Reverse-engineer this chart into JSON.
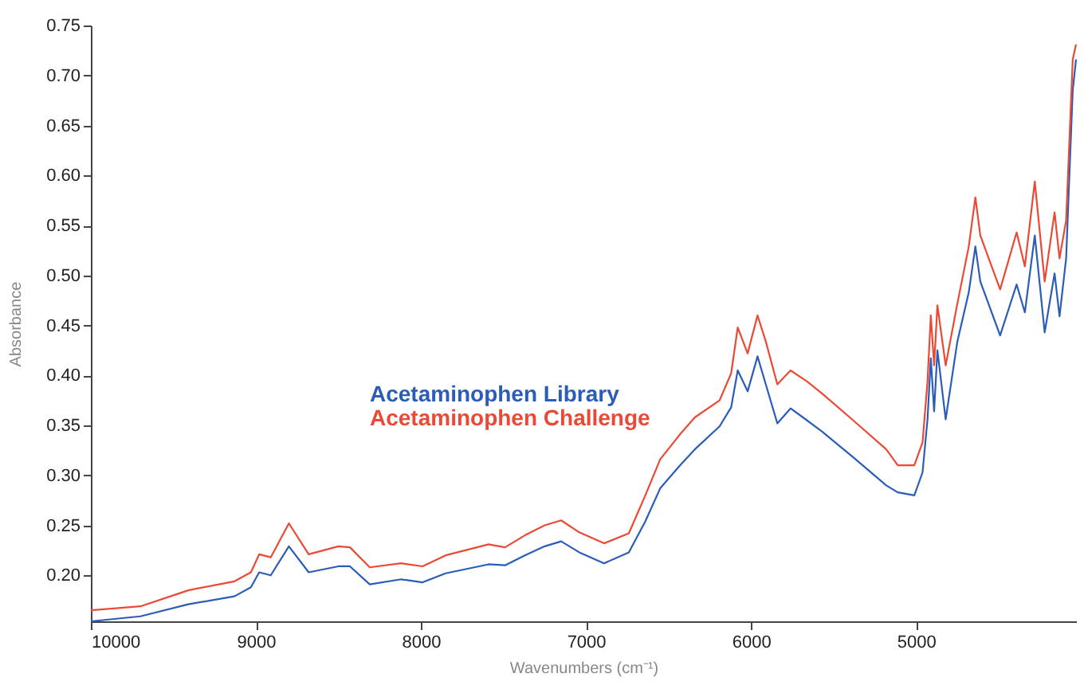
{
  "chart_data": {
    "type": "line",
    "xlabel": "Wavenumbers (cm⁻¹)",
    "ylabel": "Absorbance",
    "x": [
      10000,
      9700,
      9410,
      9130,
      9030,
      8980,
      8910,
      8800,
      8680,
      8500,
      8430,
      8310,
      8120,
      7990,
      7850,
      7590,
      7490,
      7370,
      7250,
      7150,
      7040,
      6890,
      6740,
      6640,
      6550,
      6430,
      6340,
      6190,
      6120,
      6080,
      6020,
      5960,
      5910,
      5840,
      5760,
      5660,
      5570,
      5380,
      5180,
      5110,
      5010,
      4960,
      4930,
      4910,
      4890,
      4870,
      4820,
      4750,
      4680,
      4640,
      4610,
      4490,
      4390,
      4340,
      4280,
      4220,
      4160,
      4130,
      4090,
      4050,
      4030
    ],
    "series": [
      {
        "name": "Acetaminophen Library",
        "color": "#2a5cb8",
        "values": [
          0.154,
          0.159,
          0.171,
          0.179,
          0.188,
          0.203,
          0.2,
          0.229,
          0.203,
          0.209,
          0.209,
          0.191,
          0.196,
          0.193,
          0.202,
          0.211,
          0.21,
          0.22,
          0.229,
          0.234,
          0.223,
          0.212,
          0.223,
          0.254,
          0.287,
          0.31,
          0.326,
          0.349,
          0.368,
          0.405,
          0.384,
          0.419,
          0.391,
          0.352,
          0.367,
          0.355,
          0.344,
          0.318,
          0.29,
          0.283,
          0.28,
          0.303,
          0.356,
          0.417,
          0.364,
          0.425,
          0.356,
          0.433,
          0.483,
          0.529,
          0.494,
          0.44,
          0.491,
          0.463,
          0.54,
          0.443,
          0.502,
          0.459,
          0.517,
          0.685,
          0.716
        ]
      },
      {
        "name": "Acetaminophen Challenge",
        "color": "#ea4a35",
        "values": [
          0.165,
          0.169,
          0.185,
          0.194,
          0.203,
          0.221,
          0.218,
          0.252,
          0.221,
          0.229,
          0.228,
          0.208,
          0.212,
          0.209,
          0.22,
          0.231,
          0.228,
          0.24,
          0.25,
          0.255,
          0.243,
          0.232,
          0.242,
          0.28,
          0.316,
          0.341,
          0.358,
          0.375,
          0.402,
          0.448,
          0.422,
          0.46,
          0.434,
          0.391,
          0.405,
          0.394,
          0.382,
          0.355,
          0.326,
          0.31,
          0.31,
          0.333,
          0.394,
          0.46,
          0.41,
          0.47,
          0.41,
          0.471,
          0.529,
          0.578,
          0.54,
          0.486,
          0.543,
          0.509,
          0.594,
          0.494,
          0.563,
          0.517,
          0.555,
          0.716,
          0.731
        ]
      }
    ],
    "xlim": [
      10000,
      4030
    ],
    "xticks": [
      10000,
      9000,
      8000,
      7000,
      6000,
      5000
    ],
    "ylim": [
      0.154,
      0.75
    ],
    "yticks": [
      {
        "value": 0.2,
        "label": "0.20"
      },
      {
        "value": 0.25,
        "label": "0.25"
      },
      {
        "value": 0.3,
        "label": "0.30"
      },
      {
        "value": 0.35,
        "label": "0.35"
      },
      {
        "value": 0.4,
        "label": "0.40"
      },
      {
        "value": 0.45,
        "label": "0.45"
      },
      {
        "value": 0.5,
        "label": "0.50"
      },
      {
        "value": 0.55,
        "label": "0.55"
      },
      {
        "value": 0.6,
        "label": "0.60"
      },
      {
        "value": 0.65,
        "label": "0.65"
      },
      {
        "value": 0.7,
        "label": "0.70"
      },
      {
        "value": 0.75,
        "label": "0.75"
      }
    ],
    "grid": false,
    "legend": "left",
    "marker": "none",
    "line_style": "solid"
  }
}
